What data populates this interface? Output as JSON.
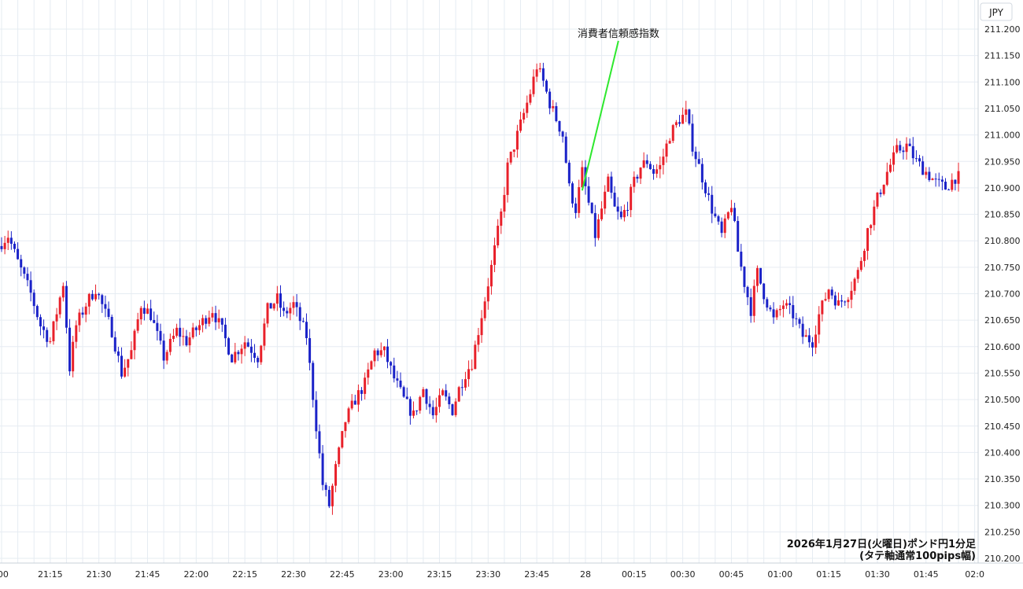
{
  "chart_data": {
    "type": "candlestick",
    "title": "",
    "currency_label": "JPY",
    "annotation": {
      "label": "消費者信頼感指数",
      "time": "23:59"
    },
    "caption_line1": "2026年1月27日(火曜日)ポンド円1分足",
    "caption_line2": "(タテ軸通常100pips幅)",
    "ylim": [
      210.2,
      211.2
    ],
    "grid": true,
    "y_ticks": [
      "211.200",
      "211.150",
      "211.100",
      "211.050",
      "211.000",
      "210.950",
      "210.900",
      "210.850",
      "210.800",
      "210.750",
      "210.700",
      "210.650",
      "210.600",
      "210.550",
      "210.500",
      "210.450",
      "210.400",
      "210.350",
      "210.300",
      "210.250",
      "210.200"
    ],
    "x_ticks": [
      {
        "time": "21:00",
        "label": ":00"
      },
      {
        "time": "21:15",
        "label": "21:15"
      },
      {
        "time": "21:30",
        "label": "21:30"
      },
      {
        "time": "21:45",
        "label": "21:45"
      },
      {
        "time": "22:00",
        "label": "22:00"
      },
      {
        "time": "22:15",
        "label": "22:15"
      },
      {
        "time": "22:30",
        "label": "22:30"
      },
      {
        "time": "22:45",
        "label": "22:45"
      },
      {
        "time": "23:00",
        "label": "23:00"
      },
      {
        "time": "23:15",
        "label": "23:15"
      },
      {
        "time": "23:30",
        "label": "23:30"
      },
      {
        "time": "23:45",
        "label": "23:45"
      },
      {
        "time": "00:00",
        "label": "28"
      },
      {
        "time": "00:15",
        "label": "00:15"
      },
      {
        "time": "00:30",
        "label": "00:30"
      },
      {
        "time": "00:45",
        "label": "00:45"
      },
      {
        "time": "01:00",
        "label": "01:00"
      },
      {
        "time": "01:15",
        "label": "01:15"
      },
      {
        "time": "01:30",
        "label": "01:30"
      },
      {
        "time": "01:45",
        "label": "01:45"
      },
      {
        "time": "02:00",
        "label": "02:0"
      }
    ],
    "up_color": "#e8202a",
    "down_color": "#1a22c8",
    "annotation_line_color": "#2ee82e",
    "grid_color": "#e6ecf2",
    "start_time": "21:00",
    "close_path": [
      [
        0,
        210.79
      ],
      [
        3,
        210.81
      ],
      [
        6,
        210.76
      ],
      [
        10,
        210.7
      ],
      [
        13,
        210.64
      ],
      [
        16,
        210.61
      ],
      [
        20,
        210.72
      ],
      [
        22,
        210.56
      ],
      [
        24,
        210.64
      ],
      [
        27,
        210.68
      ],
      [
        30,
        210.71
      ],
      [
        35,
        210.63
      ],
      [
        38,
        210.55
      ],
      [
        41,
        210.59
      ],
      [
        44,
        210.68
      ],
      [
        47,
        210.66
      ],
      [
        51,
        210.58
      ],
      [
        55,
        210.63
      ],
      [
        58,
        210.61
      ],
      [
        62,
        210.64
      ],
      [
        66,
        210.67
      ],
      [
        69,
        210.63
      ],
      [
        72,
        210.58
      ],
      [
        76,
        210.61
      ],
      [
        80,
        210.58
      ],
      [
        83,
        210.67
      ],
      [
        86,
        210.69
      ],
      [
        88,
        210.66
      ],
      [
        91,
        210.68
      ],
      [
        95,
        210.62
      ],
      [
        98,
        210.45
      ],
      [
        100,
        210.34
      ],
      [
        102,
        210.3
      ],
      [
        104,
        210.37
      ],
      [
        107,
        210.46
      ],
      [
        110,
        210.5
      ],
      [
        113,
        210.53
      ],
      [
        116,
        210.59
      ],
      [
        119,
        210.59
      ],
      [
        122,
        210.54
      ],
      [
        125,
        210.5
      ],
      [
        128,
        210.47
      ],
      [
        131,
        210.52
      ],
      [
        134,
        210.47
      ],
      [
        137,
        210.51
      ],
      [
        140,
        210.48
      ],
      [
        142,
        210.52
      ],
      [
        144,
        210.55
      ],
      [
        146,
        210.57
      ],
      [
        149,
        210.66
      ],
      [
        152,
        210.75
      ],
      [
        155,
        210.85
      ],
      [
        157,
        210.94
      ],
      [
        159,
        210.98
      ],
      [
        161,
        211.02
      ],
      [
        164,
        211.08
      ],
      [
        166,
        211.13
      ],
      [
        168,
        211.1
      ],
      [
        170,
        211.06
      ],
      [
        172,
        211.03
      ],
      [
        174,
        211.0
      ],
      [
        176,
        210.9
      ],
      [
        178,
        210.86
      ],
      [
        180,
        210.93
      ],
      [
        182,
        210.87
      ],
      [
        184,
        210.81
      ],
      [
        186,
        210.86
      ],
      [
        188,
        210.91
      ],
      [
        190,
        210.86
      ],
      [
        192,
        210.84
      ],
      [
        194,
        210.87
      ],
      [
        196,
        210.91
      ],
      [
        198,
        210.94
      ],
      [
        200,
        210.95
      ],
      [
        202,
        210.93
      ],
      [
        204,
        210.94
      ],
      [
        207,
        211.0
      ],
      [
        210,
        211.03
      ],
      [
        212,
        211.04
      ],
      [
        214,
        210.98
      ],
      [
        217,
        210.92
      ],
      [
        220,
        210.86
      ],
      [
        223,
        210.81
      ],
      [
        226,
        210.87
      ],
      [
        228,
        210.78
      ],
      [
        230,
        210.72
      ],
      [
        232,
        210.67
      ],
      [
        234,
        210.74
      ],
      [
        236,
        210.7
      ],
      [
        239,
        210.65
      ],
      [
        242,
        210.68
      ],
      [
        245,
        210.66
      ],
      [
        248,
        210.62
      ],
      [
        251,
        210.61
      ],
      [
        253,
        210.66
      ],
      [
        256,
        210.71
      ],
      [
        259,
        210.68
      ],
      [
        262,
        210.7
      ],
      [
        265,
        210.74
      ],
      [
        268,
        210.82
      ],
      [
        271,
        210.88
      ],
      [
        274,
        210.93
      ],
      [
        277,
        210.97
      ],
      [
        280,
        210.98
      ],
      [
        283,
        210.95
      ],
      [
        286,
        210.93
      ],
      [
        289,
        210.91
      ],
      [
        292,
        210.9
      ],
      [
        295,
        210.92
      ]
    ],
    "candle_count": 296,
    "seed": 7
  }
}
